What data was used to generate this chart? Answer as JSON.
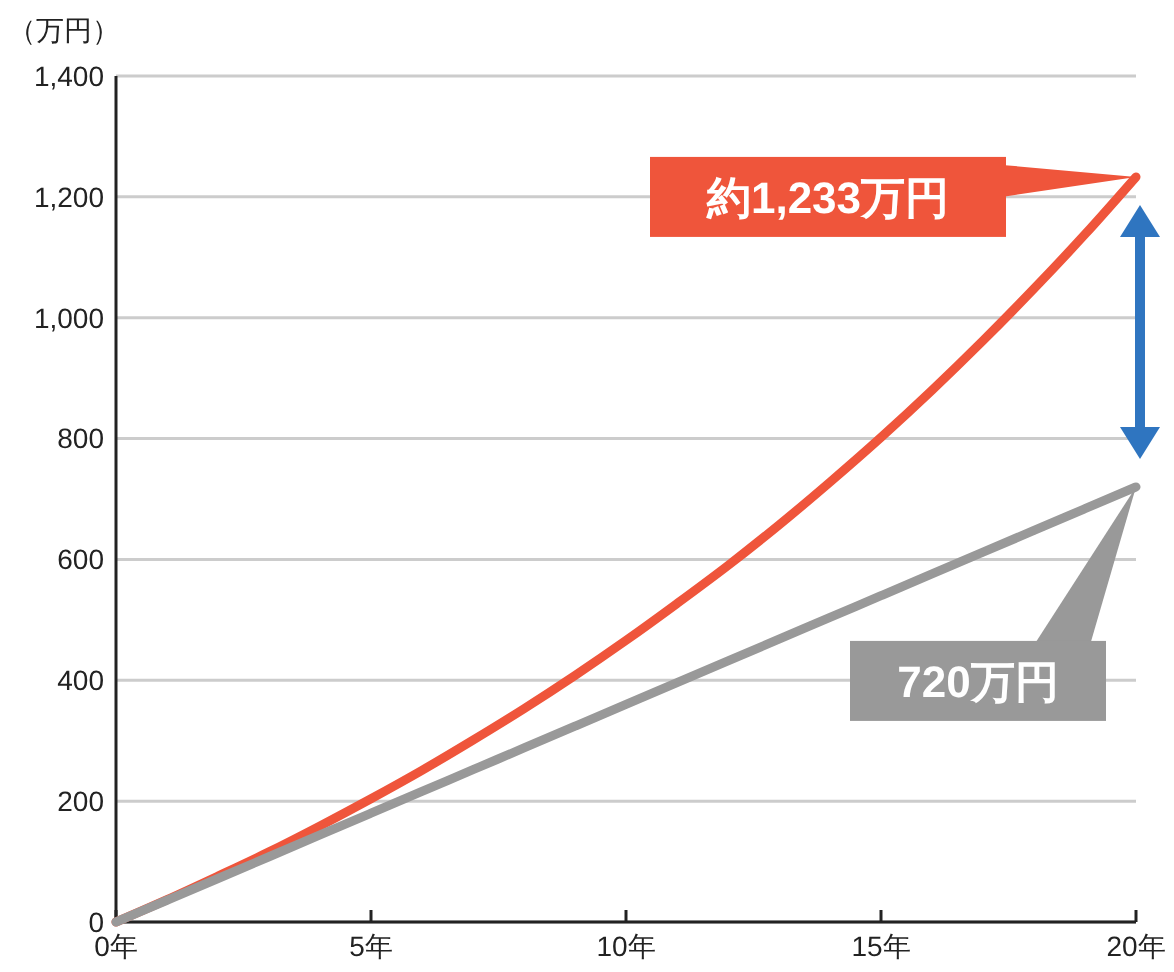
{
  "chart_data": {
    "type": "line",
    "ylabel": "（万円）",
    "x": [
      0,
      1,
      2,
      3,
      4,
      5,
      6,
      7,
      8,
      9,
      10,
      11,
      12,
      13,
      14,
      15,
      16,
      17,
      18,
      19,
      20
    ],
    "series": [
      {
        "color": "#ef553b",
        "values": [
          0,
          37,
          76,
          116,
          159,
          204,
          251,
          301,
          353,
          408,
          466,
          527,
          590,
          657,
          728,
          802,
          880,
          962,
          1048,
          1138,
          1233
        ]
      },
      {
        "color": "#999999",
        "values": [
          0,
          36,
          72,
          108,
          144,
          180,
          216,
          252,
          288,
          324,
          360,
          396,
          432,
          468,
          504,
          540,
          576,
          612,
          648,
          684,
          720
        ]
      }
    ],
    "xlim": [
      0,
      20
    ],
    "ylim": [
      0,
      1400
    ],
    "xticks": [
      {
        "value": 0,
        "label": "0年"
      },
      {
        "value": 5,
        "label": "5年"
      },
      {
        "value": 10,
        "label": "10年"
      },
      {
        "value": 15,
        "label": "15年"
      },
      {
        "value": 20,
        "label": "20年"
      }
    ],
    "yticks": [
      0,
      200,
      400,
      600,
      800,
      {
        "value": 1000,
        "label": "1,000"
      },
      {
        "value": 1200,
        "label": "1,200"
      },
      {
        "value": 1400,
        "label": "1,400"
      }
    ],
    "grid": "y",
    "marker": "none",
    "line_style": "solid",
    "annotations": [
      "約1,233万円",
      "720万円"
    ]
  }
}
